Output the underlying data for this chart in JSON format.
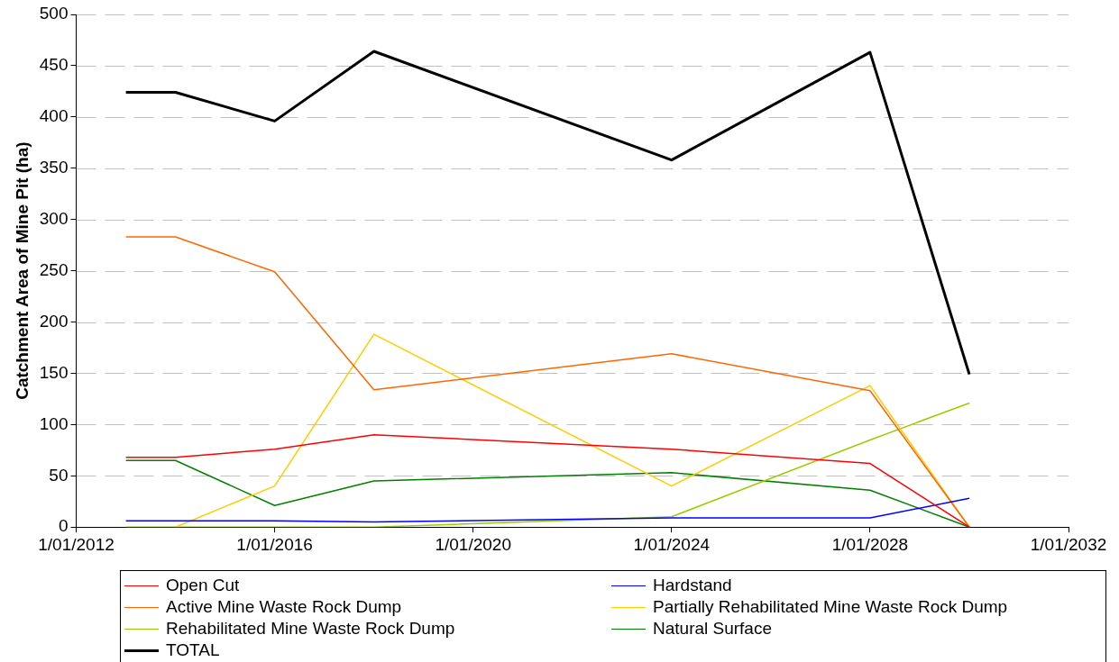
{
  "chart_data": {
    "type": "line",
    "ylabel": "Catchment Area of Mine Pit (ha)",
    "x": [
      "2013-01-01",
      "2014-01-01",
      "2016-01-01",
      "2018-01-01",
      "2024-01-01",
      "2028-01-01",
      "2030-01-01"
    ],
    "series": [
      {
        "name": "Open Cut",
        "color": "#ff0000",
        "values": [
          68,
          68,
          76,
          90,
          76,
          62,
          0
        ]
      },
      {
        "name": "Hardstand",
        "color": "#0000ff",
        "values": [
          6,
          6,
          6,
          5,
          9,
          9,
          28
        ]
      },
      {
        "name": "Active Mine Waste Rock Dump",
        "color": "#ff6600",
        "values": [
          283,
          283,
          249,
          134,
          169,
          133,
          0
        ]
      },
      {
        "name": "Partially Rehabilitated Mine Waste Rock Dump",
        "color": "#ffcc00",
        "values": [
          null,
          0,
          40,
          188,
          40,
          138,
          0
        ]
      },
      {
        "name": "Rehabilitated Mine Waste Rock Dump",
        "color": "#99cc00",
        "values": [
          0,
          0,
          0,
          0,
          10,
          85,
          121
        ]
      },
      {
        "name": "Natural Surface",
        "color": "#008000",
        "values": [
          65,
          65,
          21,
          45,
          53,
          36,
          0
        ]
      },
      {
        "name": "TOTAL",
        "color": "#000000",
        "values": [
          424,
          424,
          396,
          464,
          358,
          463,
          149
        ]
      }
    ],
    "xlim": [
      "2012-01-01",
      "2032-01-01"
    ],
    "xticks": [
      {
        "value": "2012-01-01",
        "label": "1/01/2012"
      },
      {
        "value": "2016-01-01",
        "label": "1/01/2016"
      },
      {
        "value": "2020-01-01",
        "label": "1/01/2020"
      },
      {
        "value": "2024-01-01",
        "label": "1/01/2024"
      },
      {
        "value": "2028-01-01",
        "label": "1/01/2028"
      },
      {
        "value": "2032-01-01",
        "label": "1/01/2032"
      }
    ],
    "ylim": [
      0,
      500
    ],
    "yticks": [
      0,
      50,
      100,
      150,
      200,
      250,
      300,
      350,
      400,
      450,
      500
    ],
    "grid": "y",
    "legend": "bottom",
    "marker": "none",
    "line_style": "solid"
  }
}
